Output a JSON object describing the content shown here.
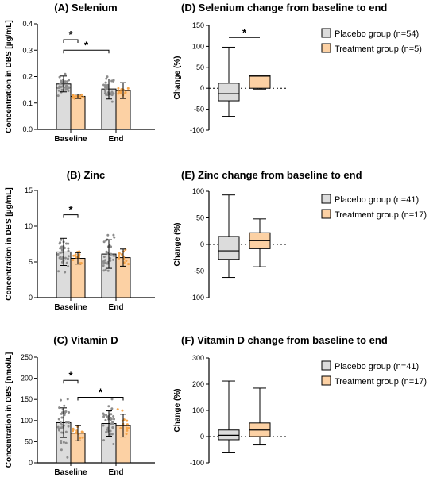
{
  "figure": {
    "colors": {
      "placebo": "#dcdcdc",
      "treatment": "#fcd1a4",
      "placebo_points": "#8c8c8c",
      "treatment_points": "#f6a54a"
    }
  },
  "chart_data": [
    {
      "id": "A",
      "type": "bar",
      "title": "(A) Selenium",
      "ylabel": "Concentration in  DBS [µg/mL]",
      "categories": [
        "Baseline",
        "End"
      ],
      "ylim": [
        0,
        0.4
      ],
      "yticks": [
        0.0,
        0.1,
        0.2,
        0.3,
        0.4
      ],
      "ytick_labels": [
        "0.0",
        "0.1",
        "0.2",
        "0.3",
        "0.4"
      ],
      "series": [
        {
          "values": [
            0.172,
            0.153
          ],
          "errors": [
            0.03,
            0.038
          ],
          "spread": [
            0.055,
            0.07
          ]
        },
        {
          "values": [
            0.125,
            0.147
          ],
          "errors": [
            0.008,
            0.03
          ],
          "spread": [
            0.012,
            0.03
          ]
        }
      ],
      "significance": [
        {
          "from": [
            0,
            0
          ],
          "to": [
            0,
            1
          ],
          "y": 0.34,
          "label": "*"
        },
        {
          "from": [
            0,
            0
          ],
          "to": [
            1,
            0
          ],
          "y": 0.3,
          "label": "*"
        }
      ]
    },
    {
      "id": "B",
      "type": "bar",
      "title": "(B) Zinc",
      "ylabel": "Concentration in  DBS [µg/mL]",
      "categories": [
        "Baseline",
        "End"
      ],
      "ylim": [
        0,
        15
      ],
      "yticks": [
        0,
        5,
        10,
        15
      ],
      "ytick_labels": [
        "0",
        "5",
        "10",
        "15"
      ],
      "series": [
        {
          "values": [
            6.4,
            6.1
          ],
          "errors": [
            1.9,
            2.0
          ],
          "spread": [
            3.6,
            4.2
          ]
        },
        {
          "values": [
            5.5,
            5.6
          ],
          "errors": [
            0.8,
            1.2
          ],
          "spread": [
            1.3,
            1.5
          ]
        }
      ],
      "significance": [
        {
          "from": [
            0,
            0
          ],
          "to": [
            0,
            1
          ],
          "y": 11.6,
          "label": "*"
        }
      ]
    },
    {
      "id": "C",
      "type": "bar",
      "title": "(C) Vitamin D",
      "ylabel": "Concentration in  DBS [nmol/L]",
      "categories": [
        "Baseline",
        "End"
      ],
      "ylim": [
        0,
        250
      ],
      "yticks": [
        0,
        50,
        100,
        150,
        200,
        250
      ],
      "ytick_labels": [
        "0",
        "50",
        "100",
        "150",
        "200",
        "250"
      ],
      "series": [
        {
          "values": [
            95,
            93
          ],
          "errors": [
            35,
            30
          ],
          "spread": [
            95,
            75
          ]
        },
        {
          "values": [
            70,
            88
          ],
          "errors": [
            18,
            27
          ],
          "spread": [
            28,
            45
          ]
        }
      ],
      "significance": [
        {
          "from": [
            0,
            0
          ],
          "to": [
            0,
            1
          ],
          "y": 195,
          "label": "*"
        },
        {
          "from": [
            0,
            1
          ],
          "to": [
            1,
            1
          ],
          "y": 155,
          "label": "*"
        }
      ]
    },
    {
      "id": "D",
      "type": "box",
      "title": "(D) Selenium change from baseline to end",
      "ylabel": "Change (%)",
      "ylim": [
        -100,
        150
      ],
      "yticks": [
        -100,
        -50,
        0,
        50,
        100,
        150
      ],
      "ytick_labels": [
        "-100",
        "-50",
        "0",
        "50",
        "100",
        "150"
      ],
      "series": [
        {
          "name": "Placebo group (n=54)",
          "min": -67,
          "q1": -30,
          "median": -13,
          "q3": 12,
          "max": 98
        },
        {
          "name": "Treatment group (n=5)",
          "min": -2,
          "q1": 0,
          "median": 29,
          "q3": 31,
          "max": 31
        }
      ],
      "significance": [
        {
          "y": 121,
          "label": "*"
        }
      ]
    },
    {
      "id": "E",
      "type": "box",
      "title": "(E) Zinc change from baseline to end",
      "ylabel": "Change (%)",
      "ylim": [
        -100,
        100
      ],
      "yticks": [
        -100,
        -50,
        0,
        50,
        100
      ],
      "ytick_labels": [
        "-100",
        "-50",
        "0",
        "50",
        "100"
      ],
      "series": [
        {
          "name": "Placebo group (n=41)",
          "min": -62,
          "q1": -28,
          "median": -12,
          "q3": 15,
          "max": 93
        },
        {
          "name": "Treatment group (n=17)",
          "min": -42,
          "q1": -8,
          "median": 7,
          "q3": 22,
          "max": 48
        }
      ],
      "significance": []
    },
    {
      "id": "F",
      "type": "box",
      "title": "(F) Vitamin D change from baseline to end",
      "ylabel": "Change (%)",
      "ylim": [
        -100,
        300
      ],
      "yticks": [
        -100,
        0,
        100,
        200,
        300
      ],
      "ytick_labels": [
        "-100",
        "0",
        "100",
        "200",
        "300"
      ],
      "series": [
        {
          "name": "Placebo group (n=41)",
          "min": -62,
          "q1": -12,
          "median": 5,
          "q3": 25,
          "max": 212
        },
        {
          "name": "Treatment group (n=17)",
          "min": -32,
          "q1": 0,
          "median": 25,
          "q3": 52,
          "max": 185
        }
      ],
      "significance": []
    }
  ]
}
